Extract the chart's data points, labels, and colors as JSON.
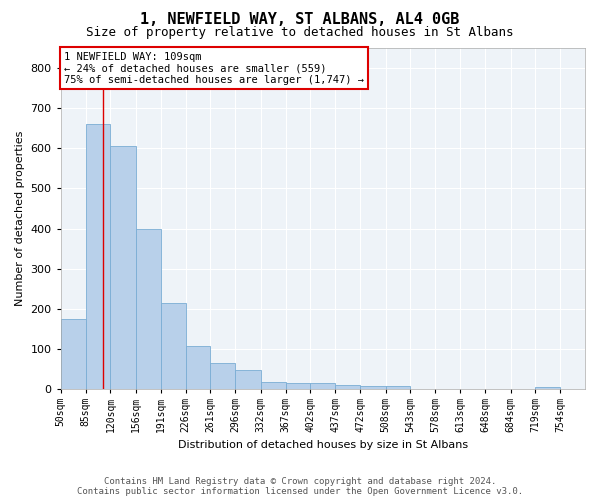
{
  "title": "1, NEWFIELD WAY, ST ALBANS, AL4 0GB",
  "subtitle": "Size of property relative to detached houses in St Albans",
  "xlabel": "Distribution of detached houses by size in St Albans",
  "ylabel": "Number of detached properties",
  "bin_edges": [
    50,
    85,
    120,
    156,
    191,
    226,
    261,
    296,
    332,
    367,
    402,
    437,
    472,
    508,
    543,
    578,
    613,
    648,
    684,
    719,
    754,
    789
  ],
  "bin_labels": [
    "50sqm",
    "85sqm",
    "120sqm",
    "156sqm",
    "191sqm",
    "226sqm",
    "261sqm",
    "296sqm",
    "332sqm",
    "367sqm",
    "402sqm",
    "437sqm",
    "472sqm",
    "508sqm",
    "543sqm",
    "578sqm",
    "613sqm",
    "648sqm",
    "684sqm",
    "719sqm",
    "754sqm"
  ],
  "bar_heights": [
    175,
    660,
    605,
    400,
    215,
    108,
    65,
    48,
    18,
    15,
    15,
    12,
    8,
    8,
    0,
    0,
    0,
    0,
    0,
    7,
    0
  ],
  "bar_color": "#b8d0ea",
  "bar_edge_color": "#7aadd4",
  "property_size": 109,
  "red_line_color": "#dd0000",
  "annotation_line1": "1 NEWFIELD WAY: 109sqm",
  "annotation_line2": "← 24% of detached houses are smaller (559)",
  "annotation_line3": "75% of semi-detached houses are larger (1,747) →",
  "annotation_box_facecolor": "#ffffff",
  "annotation_box_edgecolor": "#dd0000",
  "ylim": [
    0,
    850
  ],
  "yticks": [
    0,
    100,
    200,
    300,
    400,
    500,
    600,
    700,
    800
  ],
  "xlim_min": 50,
  "xlim_max": 789,
  "background_color": "#eef3f8",
  "grid_color": "#ffffff",
  "footer_line1": "Contains HM Land Registry data © Crown copyright and database right 2024.",
  "footer_line2": "Contains public sector information licensed under the Open Government Licence v3.0.",
  "title_fontsize": 11,
  "subtitle_fontsize": 9,
  "ylabel_fontsize": 8,
  "xlabel_fontsize": 8,
  "tick_fontsize": 7,
  "annotation_fontsize": 7.5,
  "footer_fontsize": 6.5
}
